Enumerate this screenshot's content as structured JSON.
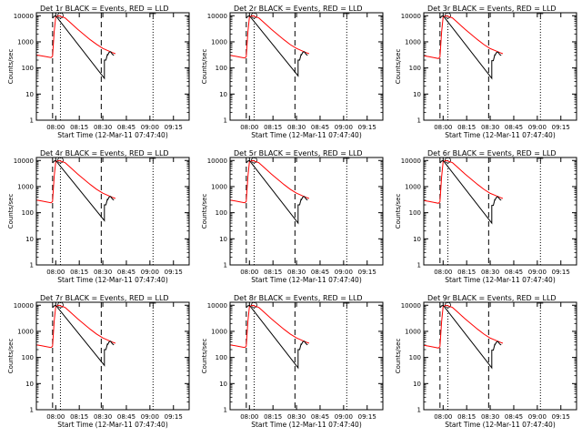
{
  "panel_title_suffix": " BLACK = Events, RED = LLD",
  "xlabel": "Start Time (12-Mar-11 07:47:40)",
  "ylabel": "Counts/sec",
  "x_tick_labels": [
    "08:00",
    "08:15",
    "08:30",
    "08:45",
    "09:00",
    "09:15"
  ],
  "y_tick_labels": [
    "1",
    "10",
    "100",
    "1000",
    "10000"
  ],
  "chart_data": [
    {
      "type": "line",
      "title": "Det 1r BLACK = Events, RED = LLD",
      "xlabel": "Start Time (12-Mar-11 07:47:40)",
      "ylabel": "Counts/sec",
      "yscale": "log",
      "ylim": [
        1,
        13000
      ],
      "xlim": [
        "07:47:40",
        "09:25"
      ],
      "grid": false,
      "series": [
        {
          "name": "LLD",
          "color": "#ff0000",
          "x": [
            "07:48",
            "07:51",
            "07:54",
            "07:57",
            "07:58",
            "07:59",
            "08:00",
            "08:02",
            "08:06",
            "08:10",
            "08:14",
            "08:18",
            "08:22",
            "08:26",
            "08:30",
            "08:33",
            "08:36",
            "08:38"
          ],
          "y": [
            310,
            290,
            270,
            250,
            280,
            2500,
            9000,
            10000,
            8200,
            5000,
            3000,
            1900,
            1200,
            800,
            560,
            470,
            390,
            350
          ]
        },
        {
          "name": "Events",
          "color": "#000000",
          "x": [
            "07:58",
            "07:59",
            "08:00",
            "08:31",
            "08:31",
            "08:32",
            "08:33",
            "08:33",
            "08:34",
            "08:35",
            "08:36",
            "08:37"
          ],
          "y": [
            8000,
            9500,
            10000,
            40,
            200,
            200,
            340,
            300,
            400,
            420,
            340,
            300
          ]
        }
      ],
      "vlines_dashed": [
        "07:58",
        "08:29"
      ],
      "vlines_dotted": [
        "08:03",
        "09:02"
      ]
    },
    {
      "type": "line",
      "title": "Det 2r BLACK = Events, RED = LLD",
      "xlabel": "Start Time (12-Mar-11 07:47:40)",
      "ylabel": "Counts/sec",
      "yscale": "log",
      "ylim": [
        1,
        13000
      ],
      "xlim": [
        "07:47:40",
        "09:25"
      ],
      "grid": false,
      "series": [
        {
          "name": "LLD",
          "color": "#ff0000",
          "x": [
            "07:48",
            "07:51",
            "07:54",
            "07:57",
            "07:58",
            "07:59",
            "08:00",
            "08:02",
            "08:06",
            "08:10",
            "08:14",
            "08:18",
            "08:22",
            "08:26",
            "08:30",
            "08:33",
            "08:36",
            "08:38"
          ],
          "y": [
            300,
            280,
            260,
            240,
            270,
            2400,
            9000,
            10000,
            8200,
            5000,
            3000,
            1900,
            1200,
            780,
            560,
            470,
            390,
            350
          ]
        },
        {
          "name": "Events",
          "color": "#000000",
          "x": [
            "07:58",
            "07:59",
            "08:00",
            "08:31",
            "08:31",
            "08:32",
            "08:33",
            "08:33",
            "08:34",
            "08:35",
            "08:36",
            "08:37"
          ],
          "y": [
            8000,
            9500,
            10000,
            50,
            200,
            200,
            340,
            300,
            400,
            420,
            340,
            300
          ]
        }
      ],
      "vlines_dashed": [
        "07:58",
        "08:29"
      ],
      "vlines_dotted": [
        "08:03",
        "09:02"
      ]
    },
    {
      "type": "line",
      "title": "Det 3r BLACK = Events, RED = LLD",
      "xlabel": "Start Time (12-Mar-11 07:47:40)",
      "ylabel": "Counts/sec",
      "yscale": "log",
      "ylim": [
        1,
        13000
      ],
      "xlim": [
        "07:47:40",
        "09:25"
      ],
      "grid": false,
      "series": [
        {
          "name": "LLD",
          "color": "#ff0000",
          "x": [
            "07:48",
            "07:51",
            "07:54",
            "07:57",
            "07:58",
            "07:59",
            "08:00",
            "08:02",
            "08:06",
            "08:10",
            "08:14",
            "08:18",
            "08:22",
            "08:26",
            "08:30",
            "08:33",
            "08:36",
            "08:38"
          ],
          "y": [
            290,
            270,
            250,
            230,
            260,
            2300,
            9000,
            10000,
            8200,
            5000,
            3000,
            1900,
            1200,
            780,
            550,
            470,
            390,
            350
          ]
        },
        {
          "name": "Events",
          "color": "#000000",
          "x": [
            "07:58",
            "07:59",
            "08:00",
            "08:31",
            "08:31",
            "08:32",
            "08:33",
            "08:33",
            "08:34",
            "08:35",
            "08:36",
            "08:37"
          ],
          "y": [
            8000,
            9500,
            10000,
            40,
            190,
            190,
            330,
            300,
            390,
            410,
            330,
            300
          ]
        }
      ],
      "vlines_dashed": [
        "07:58",
        "08:29"
      ],
      "vlines_dotted": [
        "08:03",
        "09:02"
      ]
    },
    {
      "type": "line",
      "title": "Det 4r BLACK = Events, RED = LLD",
      "xlabel": "Start Time (12-Mar-11 07:47:40)",
      "ylabel": "Counts/sec",
      "yscale": "log",
      "ylim": [
        1,
        13000
      ],
      "xlim": [
        "07:47:40",
        "09:25"
      ],
      "grid": false,
      "series": [
        {
          "name": "LLD",
          "color": "#ff0000",
          "x": [
            "07:48",
            "07:51",
            "07:54",
            "07:57",
            "07:58",
            "07:59",
            "08:00",
            "08:02",
            "08:06",
            "08:10",
            "08:14",
            "08:18",
            "08:22",
            "08:26",
            "08:30",
            "08:33",
            "08:36",
            "08:38"
          ],
          "y": [
            300,
            280,
            260,
            240,
            270,
            2500,
            9000,
            10000,
            8200,
            5000,
            3000,
            1900,
            1200,
            790,
            560,
            470,
            390,
            350
          ]
        },
        {
          "name": "Events",
          "color": "#000000",
          "x": [
            "07:58",
            "07:59",
            "08:00",
            "08:31",
            "08:31",
            "08:32",
            "08:33",
            "08:33",
            "08:34",
            "08:35",
            "08:36",
            "08:37"
          ],
          "y": [
            8000,
            9500,
            10000,
            50,
            200,
            200,
            340,
            300,
            400,
            420,
            340,
            300
          ]
        }
      ],
      "vlines_dashed": [
        "07:58",
        "08:29"
      ],
      "vlines_dotted": [
        "08:03",
        "09:02"
      ]
    },
    {
      "type": "line",
      "title": "Det 5r BLACK = Events, RED = LLD",
      "xlabel": "Start Time (12-Mar-11 07:47:40)",
      "ylabel": "Counts/sec",
      "yscale": "log",
      "ylim": [
        1,
        13000
      ],
      "xlim": [
        "07:47:40",
        "09:25"
      ],
      "grid": false,
      "series": [
        {
          "name": "LLD",
          "color": "#ff0000",
          "x": [
            "07:48",
            "07:51",
            "07:54",
            "07:57",
            "07:58",
            "07:59",
            "08:00",
            "08:02",
            "08:06",
            "08:10",
            "08:14",
            "08:18",
            "08:22",
            "08:26",
            "08:30",
            "08:33",
            "08:36",
            "08:38"
          ],
          "y": [
            300,
            280,
            260,
            240,
            270,
            2400,
            9000,
            10000,
            8200,
            5000,
            3000,
            1900,
            1200,
            790,
            560,
            470,
            390,
            350
          ]
        },
        {
          "name": "Events",
          "color": "#000000",
          "x": [
            "07:58",
            "07:59",
            "08:00",
            "08:31",
            "08:31",
            "08:32",
            "08:33",
            "08:33",
            "08:34",
            "08:35",
            "08:36",
            "08:37"
          ],
          "y": [
            8000,
            9500,
            10000,
            40,
            200,
            200,
            340,
            300,
            400,
            420,
            340,
            300
          ]
        }
      ],
      "vlines_dashed": [
        "07:58",
        "08:29"
      ],
      "vlines_dotted": [
        "08:03",
        "09:02"
      ]
    },
    {
      "type": "line",
      "title": "Det 6r BLACK = Events, RED = LLD",
      "xlabel": "Start Time (12-Mar-11 07:47:40)",
      "ylabel": "Counts/sec",
      "yscale": "log",
      "ylim": [
        1,
        13000
      ],
      "xlim": [
        "07:47:40",
        "09:25"
      ],
      "grid": false,
      "series": [
        {
          "name": "LLD",
          "color": "#ff0000",
          "x": [
            "07:48",
            "07:51",
            "07:54",
            "07:57",
            "07:58",
            "07:59",
            "08:00",
            "08:02",
            "08:06",
            "08:10",
            "08:14",
            "08:18",
            "08:22",
            "08:26",
            "08:30",
            "08:33",
            "08:36",
            "08:38"
          ],
          "y": [
            290,
            270,
            250,
            230,
            260,
            2300,
            9000,
            10000,
            8200,
            5000,
            3000,
            1900,
            1200,
            780,
            550,
            470,
            390,
            350
          ]
        },
        {
          "name": "Events",
          "color": "#000000",
          "x": [
            "07:58",
            "07:59",
            "08:00",
            "08:31",
            "08:31",
            "08:32",
            "08:33",
            "08:33",
            "08:34",
            "08:35",
            "08:36",
            "08:37"
          ],
          "y": [
            8000,
            9500,
            10000,
            40,
            190,
            190,
            330,
            300,
            390,
            410,
            330,
            300
          ]
        }
      ],
      "vlines_dashed": [
        "07:58",
        "08:29"
      ],
      "vlines_dotted": [
        "08:03",
        "09:02"
      ]
    },
    {
      "type": "line",
      "title": "Det 7r BLACK = Events, RED = LLD",
      "xlabel": "Start Time (12-Mar-11 07:47:40)",
      "ylabel": "Counts/sec",
      "yscale": "log",
      "ylim": [
        1,
        13000
      ],
      "xlim": [
        "07:47:40",
        "09:25"
      ],
      "grid": false,
      "series": [
        {
          "name": "LLD",
          "color": "#ff0000",
          "x": [
            "07:48",
            "07:51",
            "07:54",
            "07:57",
            "07:58",
            "07:59",
            "08:00",
            "08:02",
            "08:06",
            "08:10",
            "08:14",
            "08:18",
            "08:22",
            "08:26",
            "08:30",
            "08:33",
            "08:36",
            "08:38"
          ],
          "y": [
            300,
            280,
            260,
            240,
            270,
            2500,
            9000,
            10000,
            8200,
            5000,
            3000,
            1900,
            1200,
            790,
            560,
            470,
            390,
            350
          ]
        },
        {
          "name": "Events",
          "color": "#000000",
          "x": [
            "07:58",
            "07:59",
            "08:00",
            "08:31",
            "08:31",
            "08:32",
            "08:33",
            "08:33",
            "08:34",
            "08:35",
            "08:36",
            "08:37"
          ],
          "y": [
            8000,
            9500,
            10000,
            50,
            200,
            200,
            340,
            300,
            400,
            420,
            340,
            300
          ]
        }
      ],
      "vlines_dashed": [
        "07:58",
        "08:29"
      ],
      "vlines_dotted": [
        "08:03",
        "09:02"
      ]
    },
    {
      "type": "line",
      "title": "Det 8r BLACK = Events, RED = LLD",
      "xlabel": "Start Time (12-Mar-11 07:47:40)",
      "ylabel": "Counts/sec",
      "yscale": "log",
      "ylim": [
        1,
        13000
      ],
      "xlim": [
        "07:47:40",
        "09:25"
      ],
      "grid": false,
      "series": [
        {
          "name": "LLD",
          "color": "#ff0000",
          "x": [
            "07:48",
            "07:51",
            "07:54",
            "07:57",
            "07:58",
            "07:59",
            "08:00",
            "08:02",
            "08:06",
            "08:10",
            "08:14",
            "08:18",
            "08:22",
            "08:26",
            "08:30",
            "08:33",
            "08:36",
            "08:38"
          ],
          "y": [
            300,
            280,
            260,
            240,
            270,
            2400,
            9000,
            10000,
            8200,
            5000,
            3000,
            1900,
            1200,
            790,
            560,
            470,
            390,
            350
          ]
        },
        {
          "name": "Events",
          "color": "#000000",
          "x": [
            "07:58",
            "07:59",
            "08:00",
            "08:31",
            "08:31",
            "08:32",
            "08:33",
            "08:33",
            "08:34",
            "08:35",
            "08:36",
            "08:37"
          ],
          "y": [
            8000,
            9500,
            10000,
            40,
            200,
            200,
            340,
            300,
            400,
            420,
            340,
            300
          ]
        }
      ],
      "vlines_dashed": [
        "07:58",
        "08:29"
      ],
      "vlines_dotted": [
        "08:03",
        "09:02"
      ]
    },
    {
      "type": "line",
      "title": "Det 9r BLACK = Events, RED = LLD",
      "xlabel": "Start Time (12-Mar-11 07:47:40)",
      "ylabel": "Counts/sec",
      "yscale": "log",
      "ylim": [
        1,
        13000
      ],
      "xlim": [
        "07:47:40",
        "09:25"
      ],
      "grid": false,
      "series": [
        {
          "name": "LLD",
          "color": "#ff0000",
          "x": [
            "07:48",
            "07:51",
            "07:54",
            "07:57",
            "07:58",
            "07:59",
            "08:00",
            "08:02",
            "08:06",
            "08:10",
            "08:14",
            "08:18",
            "08:22",
            "08:26",
            "08:30",
            "08:33",
            "08:36",
            "08:38"
          ],
          "y": [
            290,
            270,
            250,
            230,
            260,
            2300,
            9000,
            10000,
            8200,
            5000,
            3000,
            1900,
            1200,
            780,
            550,
            470,
            390,
            350
          ]
        },
        {
          "name": "Events",
          "color": "#000000",
          "x": [
            "07:58",
            "07:59",
            "08:00",
            "08:31",
            "08:31",
            "08:32",
            "08:33",
            "08:33",
            "08:34",
            "08:35",
            "08:36",
            "08:37"
          ],
          "y": [
            8000,
            9500,
            10000,
            40,
            190,
            190,
            330,
            300,
            390,
            410,
            330,
            300
          ]
        }
      ],
      "vlines_dashed": [
        "07:58",
        "08:29"
      ],
      "vlines_dotted": [
        "08:03",
        "09:02"
      ]
    }
  ]
}
